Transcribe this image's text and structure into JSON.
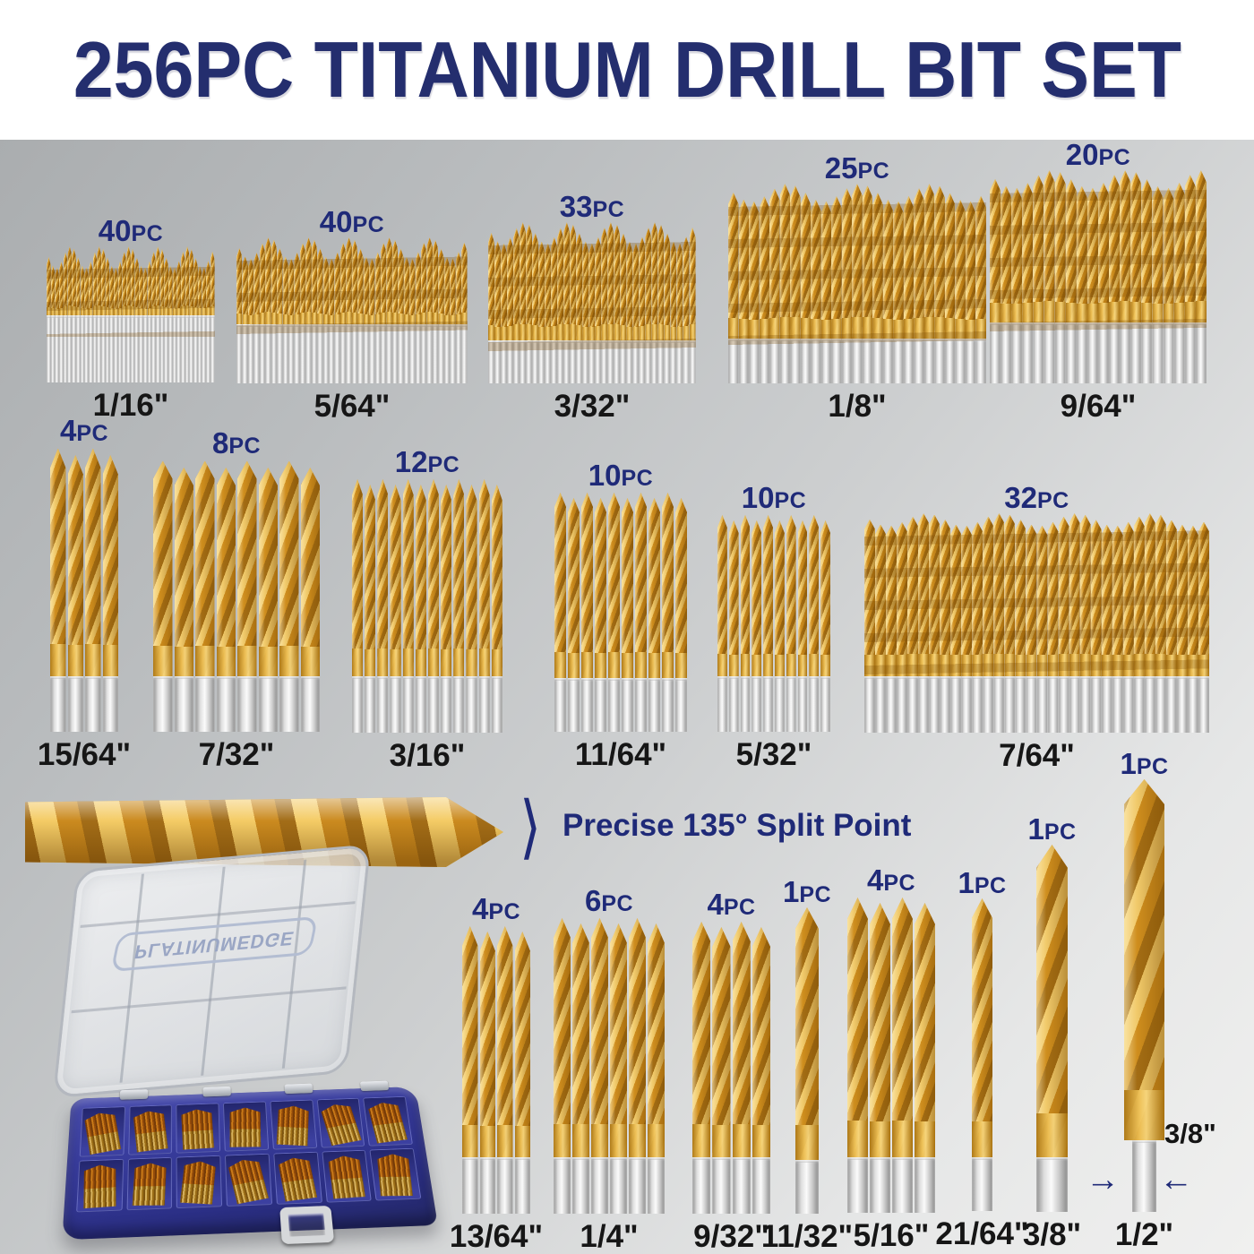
{
  "title": "256PC TITANIUM DRILL BIT SET",
  "colors": {
    "title_navy": "#242e6e",
    "navy": "#1f2a78",
    "label_black": "#161616",
    "gold": "#dd9e2a",
    "silver": "#d8d8d8",
    "case_blue": "#33378f",
    "background_top": "#a7aaac",
    "background_bottom": "#f0f0ef"
  },
  "rows": [
    {
      "name": "row-1",
      "groups": [
        {
          "count": "40",
          "pc": "PC",
          "size": "1/16\""
        },
        {
          "count": "40",
          "pc": "PC",
          "size": "5/64\""
        },
        {
          "count": "33",
          "pc": "PC",
          "size": "3/32\""
        },
        {
          "count": "25",
          "pc": "PC",
          "size": "1/8\""
        },
        {
          "count": "20",
          "pc": "PC",
          "size": "9/64\""
        }
      ]
    },
    {
      "name": "row-2",
      "groups": [
        {
          "count": "4",
          "pc": "PC",
          "size": "15/64\""
        },
        {
          "count": "8",
          "pc": "PC",
          "size": "7/32\""
        },
        {
          "count": "12",
          "pc": "PC",
          "size": "3/16\""
        },
        {
          "count": "10",
          "pc": "PC",
          "size": "11/64\""
        },
        {
          "count": "10",
          "pc": "PC",
          "size": "5/32\""
        },
        {
          "count": "32",
          "pc": "PC",
          "size": "7/64\""
        }
      ]
    },
    {
      "name": "row-3",
      "groups": [
        {
          "count": "4",
          "pc": "PC",
          "size": "13/64\""
        },
        {
          "count": "6",
          "pc": "PC",
          "size": "1/4\""
        },
        {
          "count": "4",
          "pc": "PC",
          "size": "9/32\""
        },
        {
          "count": "1",
          "pc": "PC",
          "size": "11/32\""
        },
        {
          "count": "4",
          "pc": "PC",
          "size": "5/16\""
        },
        {
          "count": "1",
          "pc": "PC",
          "size": "21/64\""
        },
        {
          "count": "1",
          "pc": "PC",
          "size": "3/8\""
        },
        {
          "count": "1",
          "pc": "PC",
          "size": "1/2\""
        }
      ]
    }
  ],
  "callout": {
    "chevron": "⟩",
    "text": "Precise 135° Split Point"
  },
  "shank_note": {
    "size": "3/8\"",
    "arrow_right": "→",
    "arrow_left": "←"
  },
  "case": {
    "brand": "PLATINUMEDGE"
  }
}
